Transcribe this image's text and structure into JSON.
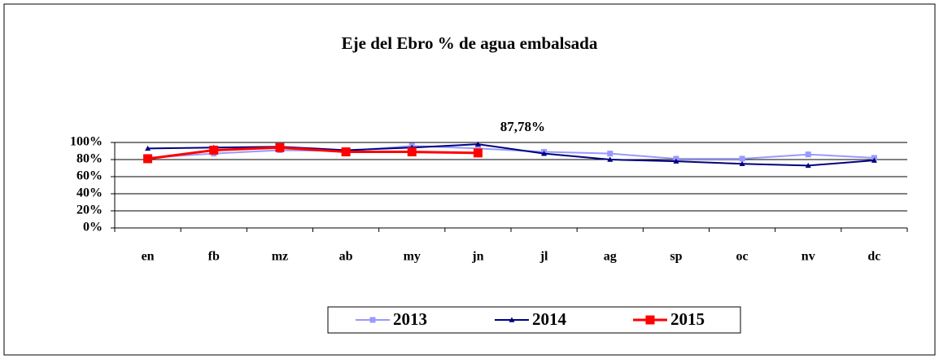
{
  "chart_data": {
    "type": "line",
    "title": "Eje del Ebro % de agua embalsada",
    "categories": [
      "en",
      "fb",
      "mz",
      "ab",
      "my",
      "jn",
      "jl",
      "ag",
      "sp",
      "oc",
      "nv",
      "dc"
    ],
    "series": [
      {
        "name": "2013",
        "color": "#9999ff",
        "marker": "square",
        "values": [
          82,
          87,
          91,
          90,
          96,
          93,
          89,
          87,
          81,
          81,
          86,
          82
        ]
      },
      {
        "name": "2014",
        "color": "#000080",
        "marker": "triangle",
        "values": [
          93,
          94,
          95,
          91,
          94,
          98,
          87,
          80,
          78,
          75,
          73,
          79
        ]
      },
      {
        "name": "2015",
        "color": "#ff0000",
        "marker": "square",
        "values": [
          81,
          91,
          94,
          89,
          89,
          87.78,
          null,
          null,
          null,
          null,
          null,
          null
        ]
      }
    ],
    "annotations": [
      {
        "text": "87,78%",
        "category": 5,
        "value": 87.78
      }
    ],
    "ylim": [
      0,
      100
    ],
    "yticks": [
      {
        "value": 0,
        "label": "0%"
      },
      {
        "value": 20,
        "label": "20%"
      },
      {
        "value": 40,
        "label": "40%"
      },
      {
        "value": 60,
        "label": "60%"
      },
      {
        "value": 80,
        "label": "80%"
      },
      {
        "value": 100,
        "label": "100%"
      }
    ],
    "grid": true,
    "legend": "bottom"
  }
}
